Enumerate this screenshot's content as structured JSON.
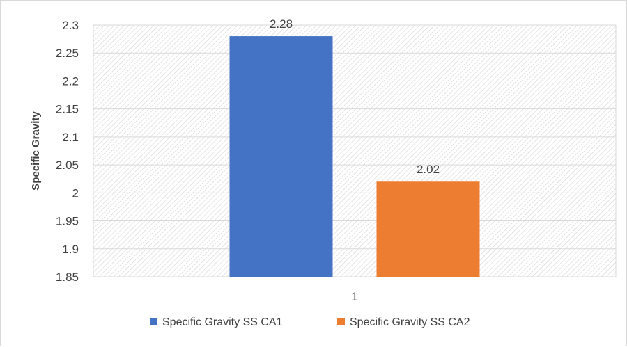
{
  "chart_data": {
    "type": "bar",
    "categories": [
      "1"
    ],
    "series": [
      {
        "name": "Specific Gravity SS CA1",
        "values": [
          2.28
        ],
        "color": "#4472C4"
      },
      {
        "name": "Specific Gravity SS CA2",
        "values": [
          2.02
        ],
        "color": "#ED7D31"
      }
    ],
    "ylabel": "Specific Gravity",
    "xlabel": "",
    "ylim": [
      1.85,
      2.3
    ],
    "yticks": [
      "1.85",
      "1.9",
      "1.95",
      "2",
      "2.05",
      "2.1",
      "2.15",
      "2.2",
      "2.25",
      "2.3"
    ],
    "data_labels": [
      "2.28",
      "2.02"
    ],
    "grid": true,
    "legend": "bottom"
  }
}
